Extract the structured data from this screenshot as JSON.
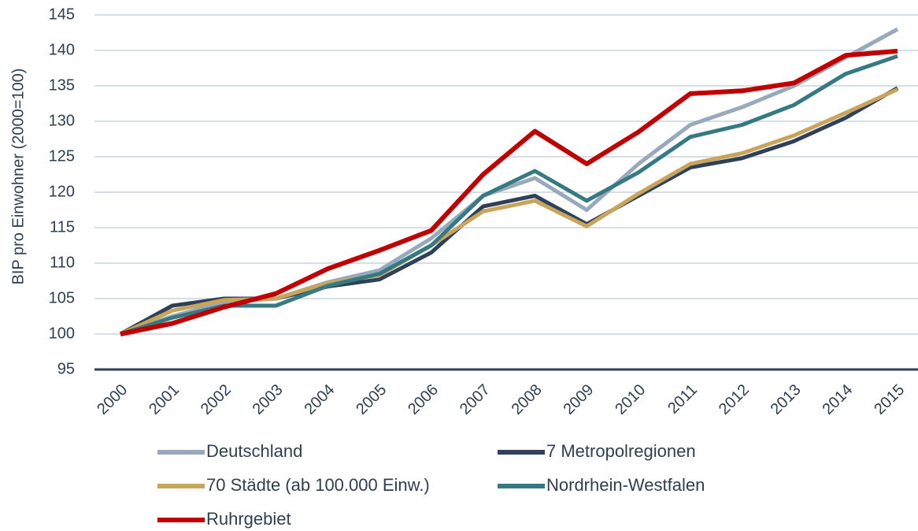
{
  "chart_data": {
    "type": "line",
    "y_label": "BIP pro Einwohner (2000=100)",
    "categories": [
      "2000",
      "2001",
      "2002",
      "2003",
      "2004",
      "2005",
      "2006",
      "2007",
      "2008",
      "2009",
      "2010",
      "2011",
      "2012",
      "2013",
      "2014",
      "2015"
    ],
    "series": [
      {
        "name": "Deutschland",
        "color": "#98a9bc",
        "values": [
          100,
          102.5,
          104.5,
          105,
          107.3,
          109,
          113.5,
          119.5,
          122,
          117.5,
          124,
          129.5,
          132,
          135,
          139,
          143
        ]
      },
      {
        "name": "7 Metropolregionen",
        "color": "#2e4159",
        "values": [
          100,
          104,
          105,
          105,
          106.7,
          107.7,
          111.5,
          118,
          119.5,
          115.5,
          119.5,
          123.5,
          124.8,
          127.2,
          130.5,
          134.7
        ]
      },
      {
        "name": "70 Städte (ab 100.000 Einw.)",
        "color": "#c9a45b",
        "values": [
          100,
          103.3,
          104.8,
          105,
          107.2,
          108.3,
          112.5,
          117.3,
          118.8,
          115.2,
          119.8,
          124,
          125.5,
          128,
          131.2,
          134.5
        ]
      },
      {
        "name": "Nordrhein-Westfalen",
        "color": "#357a83",
        "values": [
          100,
          102.3,
          104,
          104,
          106.8,
          108.5,
          112.5,
          119.5,
          123,
          118.8,
          122.8,
          127.8,
          129.5,
          132.3,
          136.7,
          139.2
        ]
      },
      {
        "name": "Ruhrgebiet",
        "color": "#c00000",
        "values": [
          100,
          101.5,
          103.8,
          105.7,
          109.2,
          111.8,
          114.6,
          122.5,
          128.6,
          124,
          128.5,
          133.9,
          134.3,
          135.4,
          139.3,
          139.9
        ]
      }
    ],
    "ylim": [
      95,
      145
    ],
    "yticks": [
      95,
      100,
      105,
      110,
      115,
      120,
      125,
      130,
      135,
      140,
      145
    ],
    "grid": true
  }
}
